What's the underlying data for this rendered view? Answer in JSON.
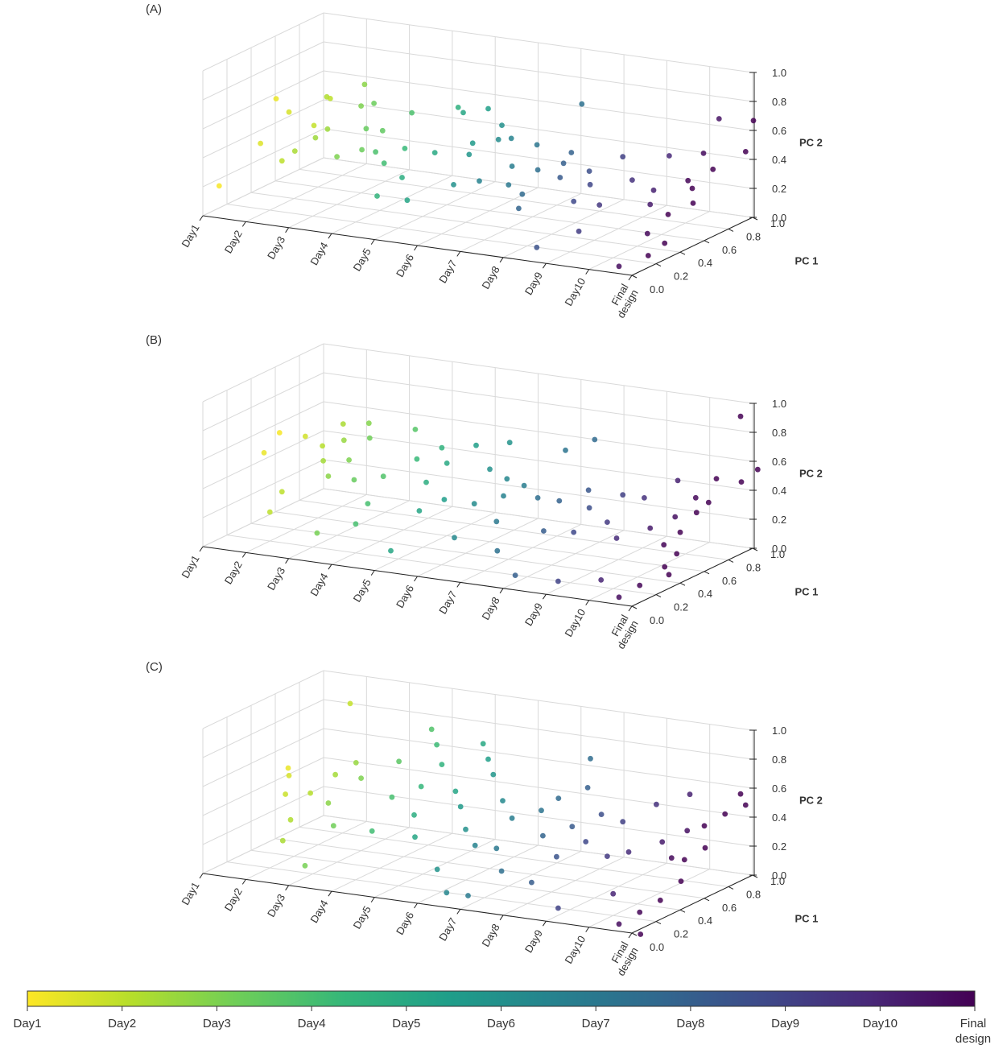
{
  "chart_data": {
    "type": "scatter",
    "categories": [
      "Day1",
      "Day2",
      "Day3",
      "Day4",
      "Day5",
      "Day6",
      "Day7",
      "Day8",
      "Day9",
      "Day10",
      "Final\ndesign"
    ],
    "y_axis_label": "PC 1",
    "z_axis_label": "PC 2",
    "y_ticks": [
      "0.0",
      "0.2",
      "0.4",
      "0.6",
      "0.8",
      "1.0"
    ],
    "z_ticks": [
      "0.0",
      "0.2",
      "0.4",
      "0.6",
      "0.8",
      "1.0"
    ],
    "ylim": [
      0,
      1
    ],
    "zlim": [
      0,
      1
    ],
    "grid": true,
    "colormap": [
      "#fde725",
      "#b5de2b",
      "#6ece58",
      "#35b779",
      "#1f9e89",
      "#26828e",
      "#31688e",
      "#3e4989",
      "#482878",
      "#440154"
    ],
    "colorbar_labels": [
      "Day1",
      "Day2",
      "Day3",
      "Day4",
      "Day5",
      "Day6",
      "Day7",
      "Day8",
      "Day9",
      "Day10",
      "Final\ndesign"
    ],
    "panels": [
      {
        "label": "(A)",
        "points": [
          [
            0.1,
            0.1,
            0.17
          ],
          [
            0.3,
            0.5,
            0.62
          ],
          [
            0.6,
            0.5,
            0.54
          ],
          [
            1.2,
            0.6,
            0.63
          ],
          [
            1.0,
            0.7,
            0.57
          ],
          [
            0.5,
            0.3,
            0.4
          ],
          [
            0.9,
            0.6,
            0.42
          ],
          [
            1.5,
            0.4,
            0.44
          ],
          [
            1.3,
            0.3,
            0.38
          ],
          [
            1.0,
            0.3,
            0.3
          ],
          [
            1.5,
            0.5,
            0.46
          ],
          [
            1.8,
            0.7,
            0.7
          ],
          [
            2.0,
            0.6,
            0.6
          ],
          [
            2.3,
            0.6,
            0.63
          ],
          [
            2.4,
            0.5,
            0.5
          ],
          [
            2.0,
            0.4,
            0.33
          ],
          [
            2.3,
            0.5,
            0.35
          ],
          [
            2.9,
            0.7,
            0.55
          ],
          [
            2.5,
            0.6,
            0.45
          ],
          [
            2.9,
            0.4,
            0.4
          ],
          [
            3.7,
            0.8,
            0.58
          ],
          [
            3.3,
            0.5,
            0.4
          ],
          [
            3.1,
            0.4,
            0.33
          ],
          [
            3.5,
            0.2,
            0.2
          ],
          [
            4.1,
            0.7,
            0.6
          ],
          [
            4.0,
            0.5,
            0.4
          ],
          [
            3.8,
            0.3,
            0.3
          ],
          [
            4.4,
            0.8,
            0.6
          ],
          [
            4.6,
            0.6,
            0.45
          ],
          [
            4.2,
            0.2,
            0.2
          ],
          [
            4.8,
            0.5,
            0.42
          ],
          [
            5.0,
            0.7,
            0.55
          ],
          [
            5.2,
            0.6,
            0.5
          ],
          [
            5.5,
            0.6,
            0.52
          ],
          [
            5.0,
            0.3,
            0.3
          ],
          [
            5.8,
            0.5,
            0.38
          ],
          [
            6.0,
            0.4,
            0.3
          ],
          [
            6.3,
            0.9,
            0.67
          ],
          [
            6.1,
            0.6,
            0.5
          ],
          [
            5.6,
            0.3,
            0.35
          ],
          [
            6.4,
            0.5,
            0.38
          ],
          [
            6.6,
            0.3,
            0.3
          ],
          [
            6.9,
            0.6,
            0.48
          ],
          [
            7.2,
            0.4,
            0.4
          ],
          [
            6.8,
            0.2,
            0.25
          ],
          [
            7.0,
            0.5,
            0.45
          ],
          [
            7.6,
            0.5,
            0.42
          ],
          [
            7.9,
            0.4,
            0.38
          ],
          [
            8.1,
            0.6,
            0.5
          ],
          [
            7.8,
            0.3,
            0.3
          ],
          [
            7.5,
            0.1,
            0.05
          ],
          [
            8.2,
            0.2,
            0.15
          ],
          [
            8.6,
            0.5,
            0.4
          ],
          [
            8.9,
            0.7,
            0.5
          ],
          [
            8.4,
            0.3,
            0.3
          ],
          [
            9.1,
            0.5,
            0.35
          ],
          [
            9.3,
            0.4,
            0.3
          ],
          [
            9.5,
            0.9,
            0.7
          ],
          [
            9.7,
            0.7,
            0.55
          ],
          [
            9.9,
            0.5,
            0.45
          ],
          [
            10.0,
            0.3,
            0.3
          ],
          [
            10.2,
            0.6,
            0.5
          ],
          [
            10.3,
            0.4,
            0.35
          ],
          [
            9.8,
            0.2,
            0.2
          ],
          [
            10.1,
            0.1,
            0.1
          ],
          [
            10.4,
            0.8,
            0.55
          ],
          [
            10.0,
            0.5,
            0.4
          ],
          [
            10.2,
            0.2,
            0.15
          ],
          [
            9.7,
            0.0,
            0.05
          ],
          [
            10.3,
            0.9,
            0.72
          ]
        ]
      },
      {
        "label": "(B)",
        "points": [
          [
            0.1,
            0.6,
            0.55
          ],
          [
            0.3,
            0.4,
            0.5
          ],
          [
            0.7,
            0.6,
            0.55
          ],
          [
            1.0,
            0.3,
            0.3
          ],
          [
            1.1,
            0.6,
            0.5
          ],
          [
            1.3,
            0.7,
            0.62
          ],
          [
            1.4,
            0.5,
            0.45
          ],
          [
            1.0,
            0.2,
            0.2
          ],
          [
            1.6,
            0.6,
            0.56
          ],
          [
            1.8,
            0.4,
            0.4
          ],
          [
            1.9,
            0.7,
            0.65
          ],
          [
            2.0,
            0.5,
            0.48
          ],
          [
            2.2,
            0.6,
            0.6
          ],
          [
            2.4,
            0.4,
            0.4
          ],
          [
            2.1,
            0.2,
            0.1
          ],
          [
            2.7,
            0.8,
            0.6
          ],
          [
            2.8,
            0.5,
            0.4
          ],
          [
            3.0,
            0.3,
            0.3
          ],
          [
            3.3,
            0.6,
            0.5
          ],
          [
            3.0,
            0.2,
            0.2
          ],
          [
            3.6,
            0.7,
            0.55
          ],
          [
            3.8,
            0.5,
            0.4
          ],
          [
            4.0,
            0.6,
            0.5
          ],
          [
            4.2,
            0.3,
            0.3
          ],
          [
            4.4,
            0.7,
            0.6
          ],
          [
            4.5,
            0.4,
            0.35
          ],
          [
            4.1,
            0.1,
            0.1
          ],
          [
            4.9,
            0.8,
            0.6
          ],
          [
            5.0,
            0.6,
            0.5
          ],
          [
            5.2,
            0.4,
            0.35
          ],
          [
            5.4,
            0.6,
            0.45
          ],
          [
            5.6,
            0.5,
            0.38
          ],
          [
            5.3,
            0.2,
            0.2
          ],
          [
            5.8,
            0.6,
            0.42
          ],
          [
            6.0,
            0.3,
            0.3
          ],
          [
            6.2,
            0.8,
            0.6
          ],
          [
            6.4,
            0.5,
            0.4
          ],
          [
            6.6,
            0.9,
            0.65
          ],
          [
            6.3,
            0.2,
            0.15
          ],
          [
            6.9,
            0.5,
            0.4
          ],
          [
            7.1,
            0.3,
            0.28
          ],
          [
            7.3,
            0.6,
            0.45
          ],
          [
            7.0,
            0.1,
            0.05
          ],
          [
            7.6,
            0.5,
            0.38
          ],
          [
            7.8,
            0.3,
            0.3
          ],
          [
            8.1,
            0.6,
            0.45
          ],
          [
            8.3,
            0.4,
            0.35
          ],
          [
            8.0,
            0.1,
            0.05
          ],
          [
            8.6,
            0.6,
            0.45
          ],
          [
            8.8,
            0.3,
            0.3
          ],
          [
            9.1,
            0.7,
            0.55
          ],
          [
            9.3,
            0.4,
            0.35
          ],
          [
            9.0,
            0.1,
            0.1
          ],
          [
            9.6,
            0.5,
            0.4
          ],
          [
            9.8,
            0.6,
            0.5
          ],
          [
            9.9,
            0.3,
            0.3
          ],
          [
            10.0,
            0.7,
            0.6
          ],
          [
            10.1,
            0.5,
            0.45
          ],
          [
            10.2,
            0.2,
            0.2
          ],
          [
            9.7,
            0.0,
            0.05
          ],
          [
            10.3,
            0.8,
            0.55
          ],
          [
            10.0,
            0.4,
            0.35
          ],
          [
            10.2,
            0.3,
            0.25
          ],
          [
            9.9,
            0.1,
            0.1
          ],
          [
            10.1,
            0.6,
            0.48
          ],
          [
            10.4,
            0.9,
            0.6
          ],
          [
            10.3,
            0.2,
            0.15
          ],
          [
            10.0,
            0.9,
            0.95
          ]
        ]
      },
      {
        "label": "(C)",
        "points": [
          [
            0.3,
            0.6,
            0.5
          ],
          [
            0.6,
            0.5,
            0.5
          ],
          [
            0.9,
            0.9,
            0.85
          ],
          [
            0.8,
            0.4,
            0.42
          ],
          [
            1.1,
            0.5,
            0.4
          ],
          [
            1.2,
            0.3,
            0.3
          ],
          [
            1.4,
            0.6,
            0.5
          ],
          [
            1.6,
            0.7,
            0.55
          ],
          [
            1.3,
            0.2,
            0.2
          ],
          [
            1.8,
            0.4,
            0.4
          ],
          [
            2.0,
            0.6,
            0.5
          ],
          [
            2.2,
            0.3,
            0.3
          ],
          [
            2.1,
            0.1,
            0.1
          ],
          [
            2.6,
            0.7,
            0.6
          ],
          [
            2.8,
            0.9,
            0.75
          ],
          [
            3.0,
            0.5,
            0.45
          ],
          [
            3.2,
            0.8,
            0.7
          ],
          [
            3.4,
            0.6,
            0.5
          ],
          [
            3.1,
            0.3,
            0.3
          ],
          [
            3.6,
            0.7,
            0.62
          ],
          [
            3.8,
            0.4,
            0.4
          ],
          [
            4.0,
            0.9,
            0.7
          ],
          [
            4.2,
            0.6,
            0.5
          ],
          [
            4.4,
            0.8,
            0.65
          ],
          [
            4.1,
            0.3,
            0.3
          ],
          [
            4.6,
            0.5,
            0.45
          ],
          [
            4.8,
            0.7,
            0.6
          ],
          [
            5.0,
            0.4,
            0.35
          ],
          [
            4.9,
            0.2,
            0.15
          ],
          [
            5.3,
            0.6,
            0.48
          ],
          [
            5.5,
            0.3,
            0.3
          ],
          [
            5.4,
            0.1,
            0.05
          ],
          [
            5.8,
            0.5,
            0.42
          ],
          [
            6.0,
            0.3,
            0.3
          ],
          [
            6.2,
            0.6,
            0.45
          ],
          [
            5.9,
            0.1,
            0.05
          ],
          [
            6.5,
            0.9,
            0.7
          ],
          [
            6.6,
            0.6,
            0.55
          ],
          [
            6.8,
            0.4,
            0.38
          ],
          [
            6.4,
            0.2,
            0.2
          ],
          [
            7.0,
            0.7,
            0.6
          ],
          [
            7.2,
            0.5,
            0.42
          ],
          [
            7.4,
            0.3,
            0.3
          ],
          [
            7.1,
            0.2,
            0.15
          ],
          [
            7.6,
            0.6,
            0.48
          ],
          [
            7.8,
            0.4,
            0.38
          ],
          [
            8.1,
            0.6,
            0.45
          ],
          [
            8.3,
            0.4,
            0.3
          ],
          [
            8.0,
            0.1,
            0.05
          ],
          [
            8.6,
            0.7,
            0.55
          ],
          [
            8.8,
            0.4,
            0.35
          ],
          [
            9.1,
            0.8,
            0.6
          ],
          [
            9.3,
            0.5,
            0.4
          ],
          [
            9.0,
            0.2,
            0.15
          ],
          [
            9.6,
            0.6,
            0.45
          ],
          [
            9.8,
            0.4,
            0.35
          ],
          [
            9.7,
            0.0,
            0.05
          ],
          [
            10.0,
            0.6,
            0.5
          ],
          [
            10.1,
            0.4,
            0.35
          ],
          [
            10.2,
            0.7,
            0.55
          ],
          [
            10.3,
            0.3,
            0.25
          ],
          [
            9.9,
            0.1,
            0.1
          ],
          [
            10.0,
            0.9,
            0.6
          ],
          [
            10.3,
            0.5,
            0.4
          ],
          [
            10.1,
            0.2,
            0.15
          ],
          [
            10.4,
            0.8,
            0.58
          ],
          [
            10.2,
            0.0,
            0.0
          ]
        ]
      }
    ]
  }
}
